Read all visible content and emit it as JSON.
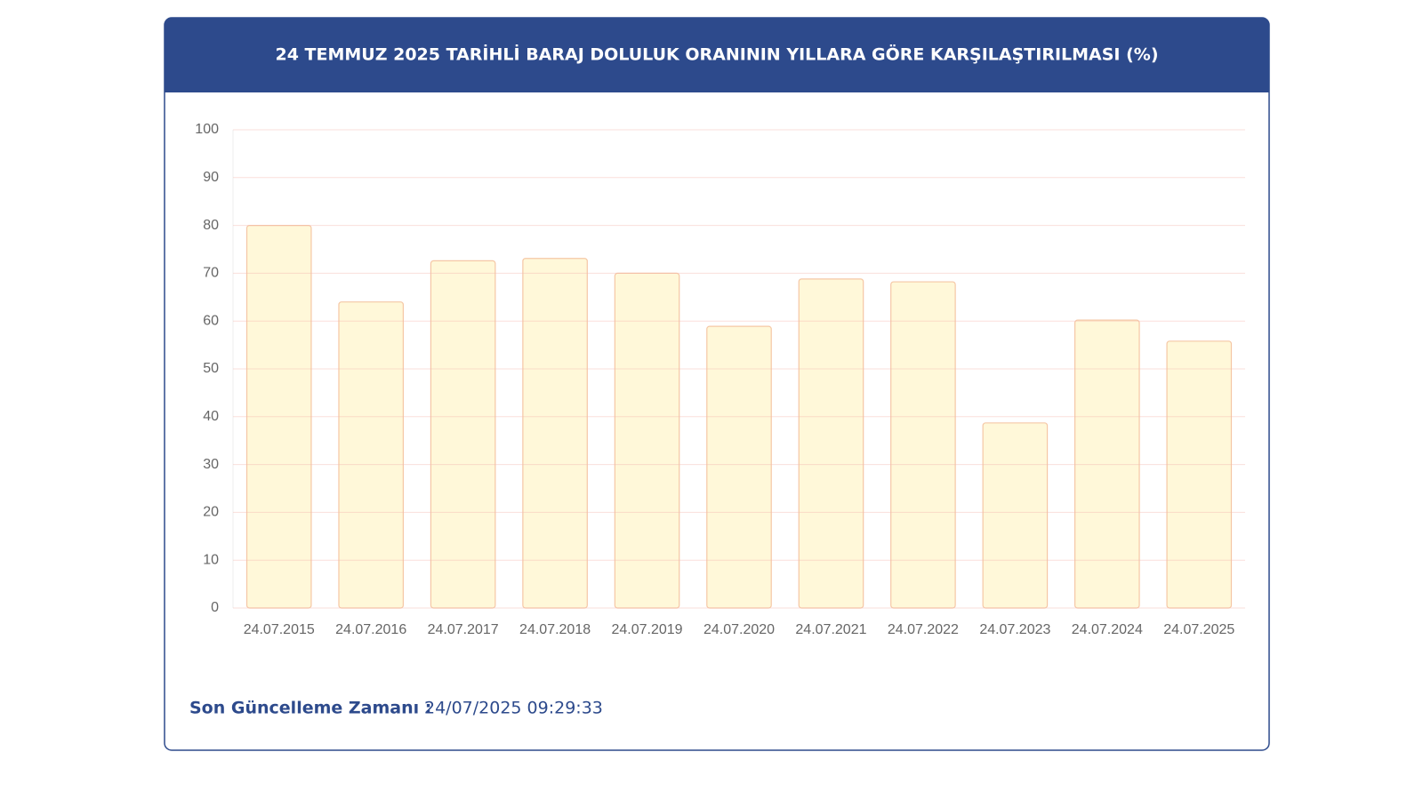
{
  "chart_data": {
    "type": "bar",
    "title": "24 TEMMUZ 2025 TARİHLİ BARAJ DOLULUK ORANININ YILLARA GÖRE KARŞILAŞTIRILMASI (%)",
    "categories": [
      "24.07.2015",
      "24.07.2016",
      "24.07.2017",
      "24.07.2018",
      "24.07.2019",
      "24.07.2020",
      "24.07.2021",
      "24.07.2022",
      "24.07.2023",
      "24.07.2024",
      "24.07.2025"
    ],
    "values": [
      80,
      64,
      72.6,
      73.1,
      70,
      58.9,
      68.8,
      68.2,
      38.7,
      60.2,
      55.8
    ],
    "color": "#fff8d9",
    "ylim": [
      0,
      100
    ],
    "yticks": [
      0,
      10,
      20,
      30,
      40,
      50,
      60,
      70,
      80,
      90,
      100
    ],
    "grid": true,
    "footer_label": "Son Güncelleme Zamanı :",
    "footer_value": "24/07/2025 09:29:33"
  }
}
